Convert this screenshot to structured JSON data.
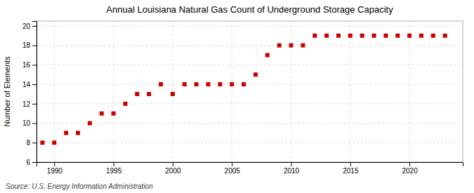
{
  "chart_data": {
    "type": "scatter",
    "title": "Annual Louisiana Natural Gas Count of Underground Storage Capacity",
    "ylabel": "Number of Elements",
    "source": "Source: U.S. Energy Information Administration",
    "x": [
      1989,
      1990,
      1991,
      1992,
      1993,
      1994,
      1995,
      1996,
      1997,
      1998,
      1999,
      2000,
      2001,
      2002,
      2003,
      2004,
      2005,
      2006,
      2007,
      2008,
      2009,
      2010,
      2011,
      2012,
      2013,
      2014,
      2015,
      2016,
      2017,
      2018,
      2019,
      2020,
      2021,
      2022,
      2023
    ],
    "values": [
      8,
      8,
      9,
      9,
      10,
      11,
      11,
      12,
      13,
      13,
      14,
      13,
      14,
      14,
      14,
      14,
      14,
      14,
      15,
      17,
      18,
      18,
      18,
      19,
      19,
      19,
      19,
      19,
      19,
      19,
      19,
      19,
      19,
      19,
      19
    ],
    "color": "#cc0000",
    "marker": "square",
    "xlim": [
      1988.5,
      2024.5
    ],
    "ylim": [
      6,
      20.5
    ],
    "xticks": [
      1990,
      1995,
      2000,
      2005,
      2010,
      2015,
      2020
    ],
    "yticks": [
      6,
      8,
      10,
      12,
      14,
      16,
      18,
      20
    ],
    "grid": true
  }
}
